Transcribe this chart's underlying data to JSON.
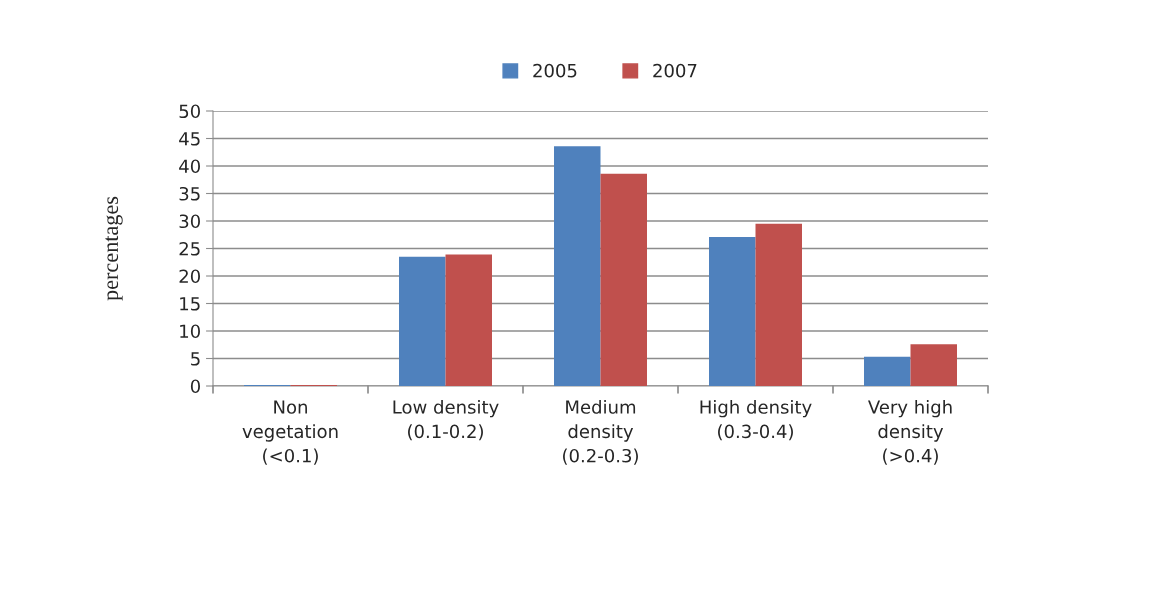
{
  "chart_data": {
    "type": "bar",
    "ylabel": "percentages",
    "categories": [
      "Non\nvegetation\n(<0.1)",
      "Low density\n(0.1-0.2)",
      "Medium\ndensity\n(0.2-0.3)",
      "High density\n(0.3-0.4)",
      "Very high\ndensity\n(>0.4)"
    ],
    "series": [
      {
        "name": "2005",
        "color": "#4f81bd",
        "values": [
          0.2,
          23.5,
          43.6,
          27.1,
          5.3
        ]
      },
      {
        "name": "2007",
        "color": "#c0504d",
        "values": [
          0.2,
          23.9,
          38.6,
          29.5,
          7.6
        ]
      }
    ],
    "ylim": [
      0,
      50
    ],
    "yticks": [
      0,
      5,
      10,
      15,
      20,
      25,
      30,
      35,
      40,
      45,
      50
    ],
    "grid": "y",
    "legend": "top"
  }
}
